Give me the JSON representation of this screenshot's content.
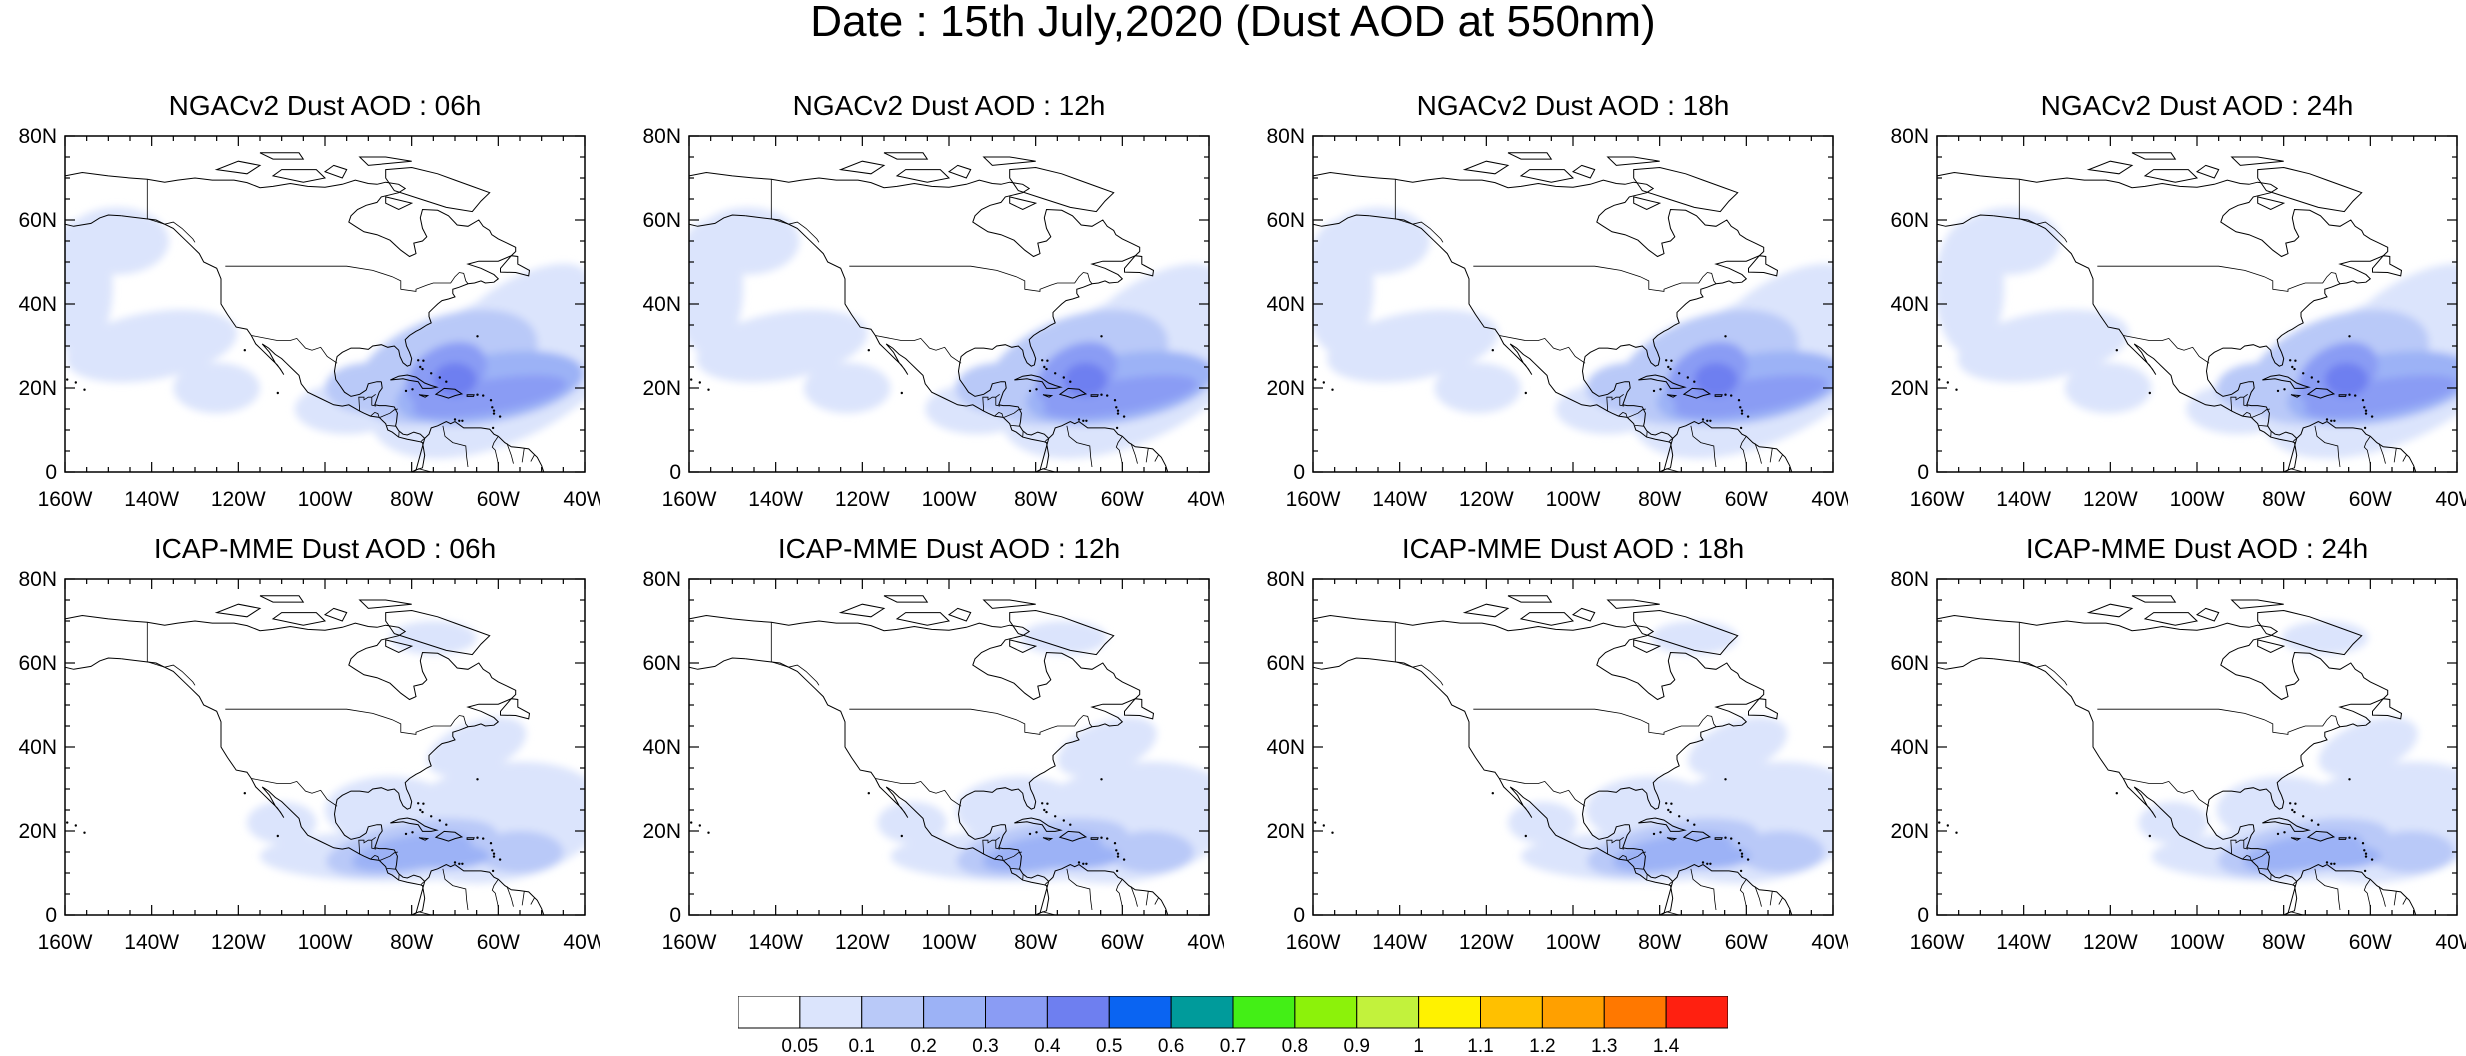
{
  "title": "Date : 15th July,2020 (Dust AOD at 550nm)",
  "lat_ticks": [
    "80N",
    "60N",
    "40N",
    "20N",
    "0"
  ],
  "lon_ticks": [
    "160W",
    "140W",
    "120W",
    "100W",
    "80W",
    "60W",
    "40W"
  ],
  "panels": [
    {
      "title": "NGACv2 Dust AOD : 06h",
      "model": "NGACv2",
      "hour": "06h"
    },
    {
      "title": "NGACv2 Dust AOD : 12h",
      "model": "NGACv2",
      "hour": "12h"
    },
    {
      "title": "NGACv2 Dust AOD : 18h",
      "model": "NGACv2",
      "hour": "18h"
    },
    {
      "title": "NGACv2 Dust AOD : 24h",
      "model": "NGACv2",
      "hour": "24h"
    },
    {
      "title": "ICAP-MME Dust AOD : 06h",
      "model": "ICAP-MME",
      "hour": "06h"
    },
    {
      "title": "ICAP-MME Dust AOD : 12h",
      "model": "ICAP-MME",
      "hour": "12h"
    },
    {
      "title": "ICAP-MME Dust AOD : 18h",
      "model": "ICAP-MME",
      "hour": "18h"
    },
    {
      "title": "ICAP-MME Dust AOD : 24h",
      "model": "ICAP-MME",
      "hour": "24h"
    }
  ],
  "colorbar": {
    "levels": [
      "0.05",
      "0.1",
      "0.2",
      "0.3",
      "0.4",
      "0.5",
      "0.6",
      "0.7",
      "0.8",
      "0.9",
      "1",
      "1.1",
      "1.2",
      "1.3",
      "1.4"
    ],
    "colors": [
      "#ffffff",
      "#dbe4fc",
      "#b9c9f8",
      "#9cb2f6",
      "#8a9cf4",
      "#6e7ff0",
      "#0a64f2",
      "#009b9b",
      "#43ef16",
      "#8cf20a",
      "#c2f23c",
      "#fff200",
      "#ffc000",
      "#ffa000",
      "#ff7800",
      "#ff2010"
    ]
  }
}
